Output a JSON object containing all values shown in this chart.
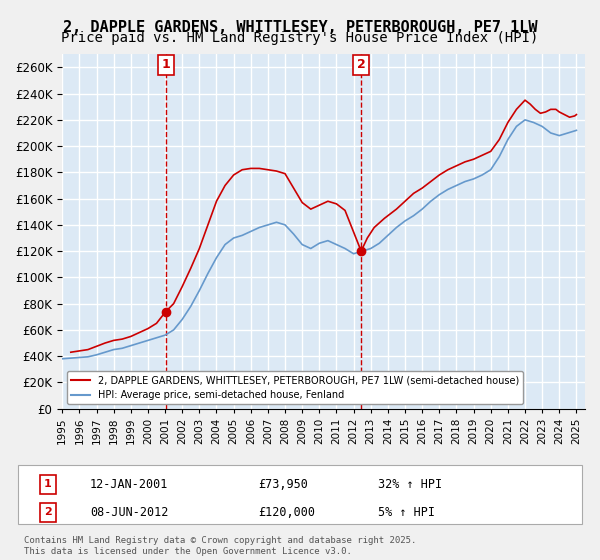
{
  "title": "2, DAPPLE GARDENS, WHITTLESEY, PETERBOROUGH, PE7 1LW",
  "subtitle": "Price paid vs. HM Land Registry's House Price Index (HPI)",
  "xlabel": "",
  "ylabel": "",
  "ylim": [
    0,
    270000
  ],
  "yticks": [
    0,
    20000,
    40000,
    60000,
    80000,
    100000,
    120000,
    140000,
    160000,
    180000,
    200000,
    220000,
    240000,
    260000
  ],
  "xlim_start": 1995.0,
  "xlim_end": 2025.5,
  "bg_color": "#dce9f5",
  "plot_bg": "#dce9f5",
  "grid_color": "#ffffff",
  "red_line_color": "#cc0000",
  "blue_line_color": "#6699cc",
  "purchase1_date": 2001.04,
  "purchase1_price": 73950,
  "purchase2_date": 2012.44,
  "purchase2_price": 120000,
  "legend_house": "2, DAPPLE GARDENS, WHITTLESEY, PETERBOROUGH, PE7 1LW (semi-detached house)",
  "legend_hpi": "HPI: Average price, semi-detached house, Fenland",
  "label1_text": "12-JAN-2001",
  "label1_price": "£73,950",
  "label1_hpi": "32% ↑ HPI",
  "label2_text": "08-JUN-2012",
  "label2_price": "£120,000",
  "label2_hpi": "5% ↑ HPI",
  "footer": "Contains HM Land Registry data © Crown copyright and database right 2025.\nThis data is licensed under the Open Government Licence v3.0.",
  "title_fontsize": 11,
  "subtitle_fontsize": 10
}
